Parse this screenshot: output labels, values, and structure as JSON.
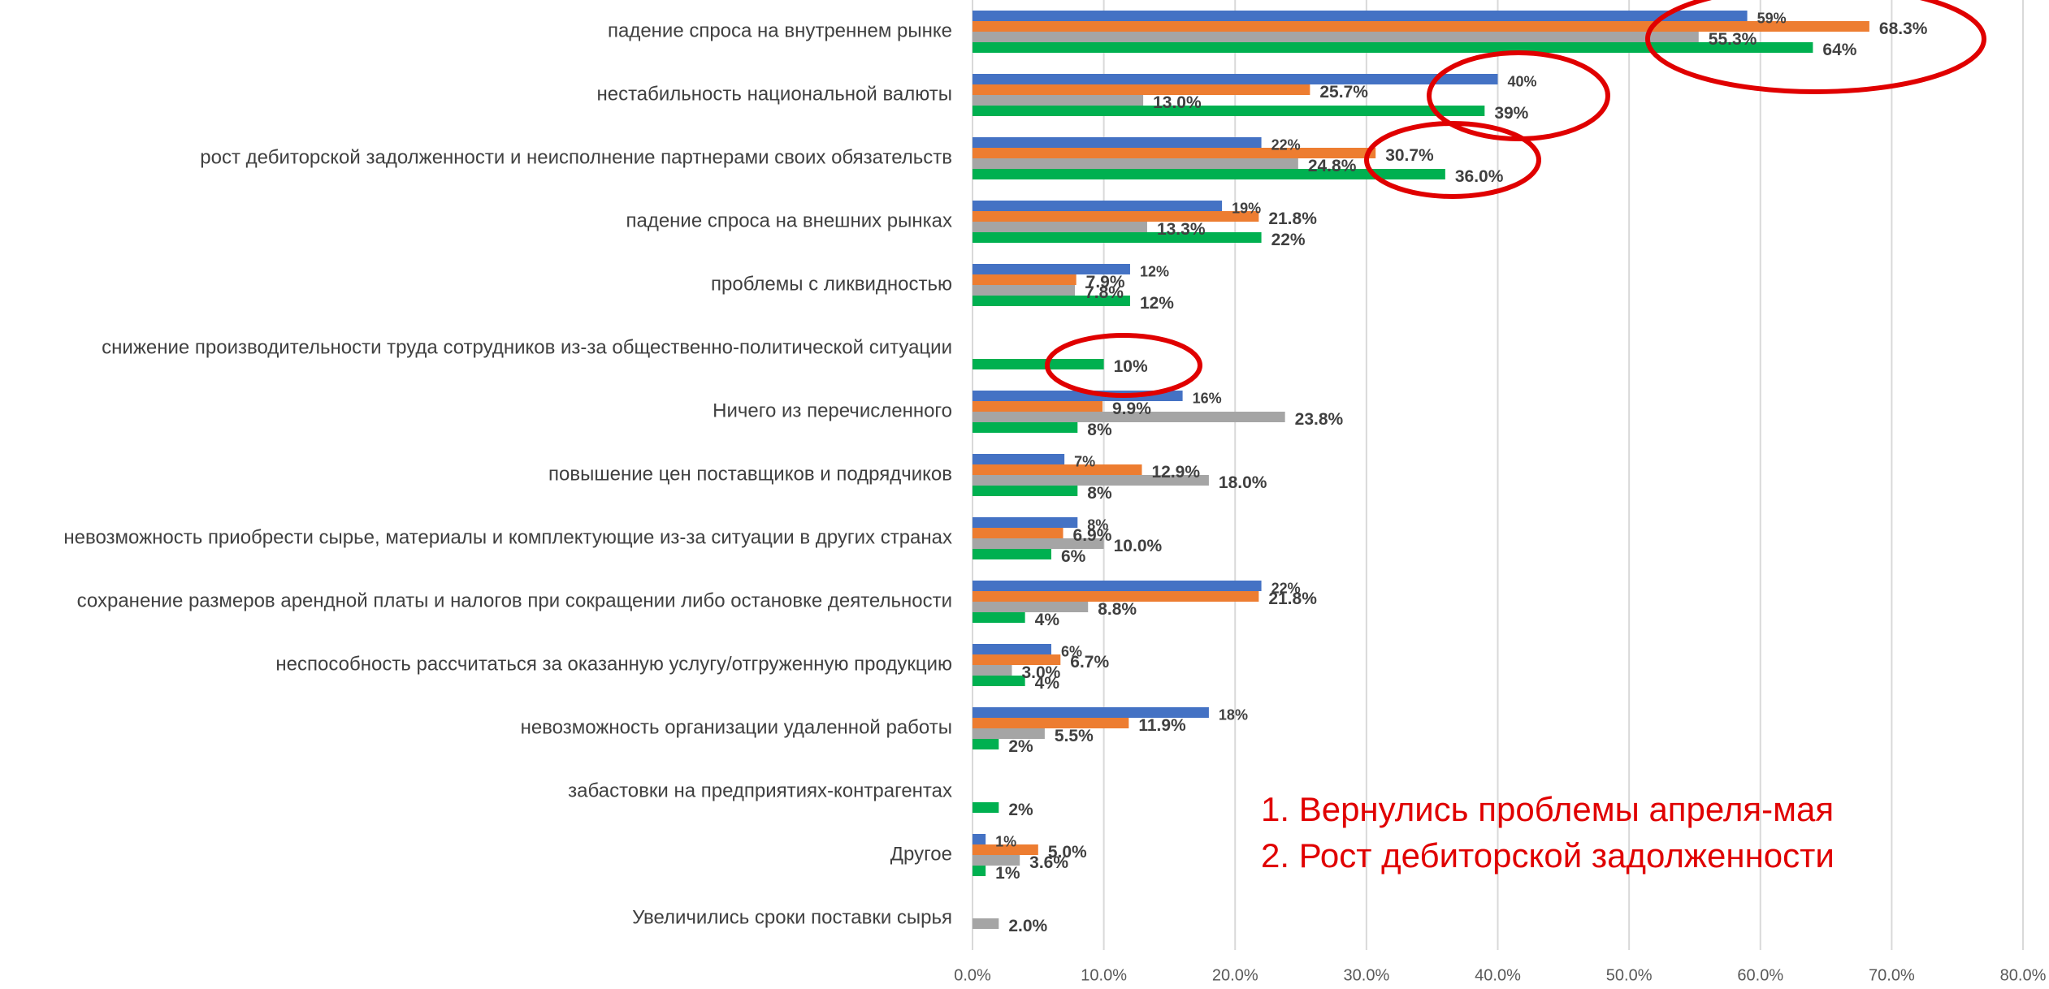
{
  "chart_data": {
    "type": "hbar",
    "categories": [
      "падение спроса на внутреннем рынке",
      "нестабильность национальной валюты",
      "рост дебиторской задолженности и неисполнение партнерами своих обязательств",
      "падение спроса на внешних рынках",
      "проблемы с ликвидностью",
      "снижение производительности труда сотрудников из-за общественно-политической ситуации",
      "Ничего из перечисленного",
      "повышение цен поставщиков и подрядчиков",
      "невозможность приобрести сырье, материалы и комплектующие из-за ситуации в других странах",
      "сохранение размеров арендной платы и налогов при сокращении либо остановке деятельности",
      "неспособность рассчитаться за оказанную услугу/отгруженную продукцию",
      "невозможность организации удаленной работы",
      "забастовки на предприятиях-контрагентах",
      "Другое",
      "Увеличились сроки поставки сырья"
    ],
    "series": [
      {
        "color": "#4472c4",
        "values": [
          59,
          40,
          22,
          19,
          12,
          null,
          16,
          7,
          8,
          22,
          6,
          18,
          null,
          1,
          null
        ],
        "value_labels": [
          "59%",
          "40%",
          "22%",
          "19%",
          "12%",
          null,
          "16%",
          "7%",
          "8%",
          "22%",
          "6%",
          "18%",
          null,
          "1%",
          null
        ]
      },
      {
        "color": "#ed7d31",
        "values": [
          68.3,
          25.7,
          30.7,
          21.8,
          7.9,
          null,
          9.9,
          12.9,
          6.9,
          21.8,
          6.7,
          11.9,
          null,
          5.0,
          null
        ],
        "value_labels": [
          "68.3%",
          "25.7%",
          "30.7%",
          "21.8%",
          "7.9%",
          null,
          "9.9%",
          "12.9%",
          "6.9%",
          "21.8%",
          "6.7%",
          "11.9%",
          null,
          "5.0%",
          null
        ]
      },
      {
        "color": "#a5a5a5",
        "values": [
          55.3,
          13.0,
          24.8,
          13.3,
          7.8,
          null,
          23.8,
          18.0,
          10.0,
          8.8,
          3.0,
          5.5,
          null,
          3.6,
          2.0
        ],
        "value_labels": [
          "55.3%",
          "13.0%",
          "24.8%",
          "13.3%",
          "7.8%",
          null,
          "23.8%",
          "18.0%",
          "10.0%",
          "8.8%",
          "3.0%",
          "5.5%",
          null,
          "3.6%",
          "2.0%"
        ]
      },
      {
        "color": "#00b050",
        "values": [
          64,
          39,
          36.0,
          22,
          12,
          10,
          8,
          8,
          6,
          4,
          4,
          2,
          2,
          1,
          null
        ],
        "value_labels": [
          "64%",
          "39%",
          "36.0%",
          "22%",
          "12%",
          "10%",
          "8%",
          "8%",
          "6%",
          "4%",
          "4%",
          "2%",
          "2%",
          "1%",
          null
        ]
      }
    ],
    "xlim": [
      0,
      80
    ],
    "xticks": [
      {
        "value": 0,
        "label": "0.0%"
      },
      {
        "value": 10,
        "label": "10.0%"
      },
      {
        "value": 20,
        "label": "20.0%"
      },
      {
        "value": 30,
        "label": "30.0%"
      },
      {
        "value": 40,
        "label": "40.0%"
      },
      {
        "value": 50,
        "label": "50.0%"
      },
      {
        "value": 60,
        "label": "60.0%"
      },
      {
        "value": 70,
        "label": "70.0%"
      },
      {
        "value": 80,
        "label": "80.0%"
      }
    ],
    "grid": true,
    "annotations": [
      "1.   Вернулись проблемы апреля-мая",
      "2.   Рост дебиторской задолженности"
    ]
  }
}
